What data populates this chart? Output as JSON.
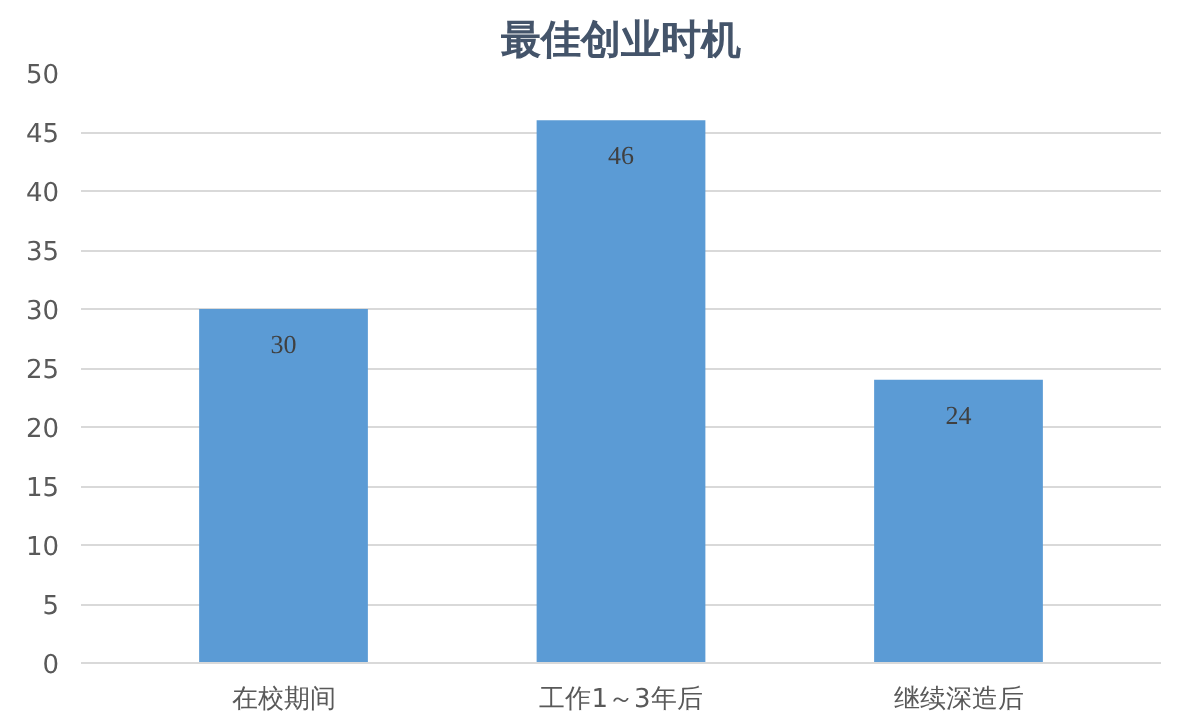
{
  "chart_data": {
    "type": "bar",
    "title": "最佳创业时机",
    "categories": [
      "在校期间",
      "工作1～3年后",
      "继续深造后"
    ],
    "values": [
      30,
      46,
      24
    ],
    "color": "#5b9bd5",
    "ylim": [
      0,
      50
    ],
    "yticks": [
      0,
      5,
      10,
      15,
      20,
      25,
      30,
      35,
      40,
      45,
      50
    ],
    "grid": "y",
    "data_labels": true
  }
}
